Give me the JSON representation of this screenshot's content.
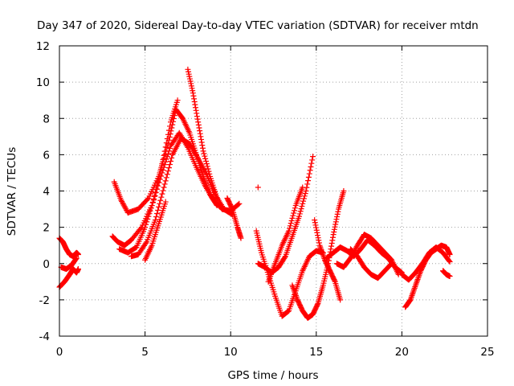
{
  "chart_data": {
    "type": "scatter",
    "title": "Day 347 of 2020, Sidereal Day-to-day VTEC variation (SDTVAR) for receiver mtdn",
    "xlabel": "GPS time / hours",
    "ylabel": "SDTVAR / TECUs",
    "xlim": [
      0,
      25
    ],
    "ylim": [
      -4,
      12
    ],
    "x_ticks": [
      0,
      5,
      10,
      15,
      20,
      25
    ],
    "y_ticks": [
      -4,
      -2,
      0,
      2,
      4,
      6,
      8,
      10,
      12
    ],
    "grid": true,
    "marker": "+",
    "marker_color": "#ff0000",
    "series_segments": [
      {
        "name": "arc-1a",
        "x": [
          0.0,
          0.2,
          0.4,
          0.6,
          0.8,
          1.0,
          1.1
        ],
        "y": [
          1.4,
          1.2,
          0.8,
          0.5,
          0.4,
          0.6,
          0.5
        ]
      },
      {
        "name": "arc-1b",
        "x": [
          0.0,
          0.3,
          0.6,
          0.8,
          1.0,
          1.1
        ],
        "y": [
          -1.3,
          -1.0,
          -0.6,
          -0.3,
          -0.5,
          -0.3
        ]
      },
      {
        "name": "arc-1c",
        "x": [
          0.1,
          0.4,
          0.7,
          1.0
        ],
        "y": [
          -0.2,
          -0.3,
          -0.1,
          0.3
        ]
      },
      {
        "name": "arc-2",
        "x": [
          3.1,
          3.4,
          3.8,
          4.2,
          4.8,
          5.4,
          6.0,
          6.5,
          7.0,
          7.5,
          8.0,
          8.5,
          9.0,
          9.5,
          10.0,
          10.5
        ],
        "y": [
          1.5,
          1.2,
          1.0,
          1.3,
          2.0,
          3.2,
          5.0,
          6.5,
          7.2,
          6.4,
          5.3,
          4.3,
          3.5,
          3.0,
          2.9,
          3.3
        ]
      },
      {
        "name": "arc-3",
        "x": [
          3.2,
          3.6,
          4.0,
          4.6,
          5.2,
          5.8,
          6.4,
          6.8,
          7.2,
          7.6,
          8.0,
          8.4,
          8.8,
          9.2
        ],
        "y": [
          4.5,
          3.5,
          2.8,
          3.0,
          3.6,
          4.8,
          6.8,
          8.5,
          8.0,
          7.2,
          6.0,
          4.8,
          3.8,
          3.2
        ]
      },
      {
        "name": "arc-4",
        "x": [
          3.5,
          4.0,
          4.5,
          5.0,
          5.5,
          6.0,
          6.5,
          6.9
        ],
        "y": [
          0.8,
          0.6,
          0.9,
          2.0,
          3.5,
          5.5,
          7.8,
          9.0
        ]
      },
      {
        "name": "arc-5",
        "x": [
          4.2,
          4.6,
          5.1,
          5.6,
          6.1,
          6.6,
          7.1,
          7.6,
          8.1,
          8.6,
          9.1,
          9.6,
          10.1
        ],
        "y": [
          0.4,
          0.5,
          1.2,
          2.4,
          4.2,
          6.0,
          6.9,
          6.6,
          5.8,
          4.9,
          3.8,
          3.0,
          2.7
        ]
      },
      {
        "name": "arc-6",
        "x": [
          5.0,
          5.4,
          5.8,
          6.2
        ],
        "y": [
          0.2,
          1.0,
          2.2,
          3.4
        ]
      },
      {
        "name": "arc-7",
        "x": [
          7.5,
          7.8,
          8.1,
          8.4,
          8.8,
          9.2
        ],
        "y": [
          10.7,
          9.4,
          7.8,
          6.2,
          4.8,
          3.6
        ]
      },
      {
        "name": "arc-8",
        "x": [
          9.8,
          10.1,
          10.4,
          10.6
        ],
        "y": [
          3.6,
          3.0,
          2.0,
          1.4
        ]
      },
      {
        "name": "arc-9",
        "x": [
          11.5,
          11.8,
          12.2,
          12.6,
          13.0,
          13.4,
          13.8,
          14.2,
          14.6,
          15.0,
          15.4
        ],
        "y": [
          1.8,
          0.6,
          -0.6,
          -1.8,
          -2.9,
          -2.6,
          -1.5,
          -0.4,
          0.4,
          0.7,
          0.6
        ]
      },
      {
        "name": "arc-10",
        "x": [
          11.6,
          12.0,
          12.4,
          12.8,
          13.2,
          13.6,
          14.0,
          14.4,
          14.8
        ],
        "y": [
          0.0,
          -0.2,
          -0.5,
          -0.2,
          0.4,
          1.5,
          2.6,
          4.0,
          5.9
        ]
      },
      {
        "name": "arc-11",
        "x": [
          12.2,
          12.6,
          13.0,
          13.4,
          13.8,
          14.2
        ],
        "y": [
          -1.0,
          0.0,
          1.0,
          1.8,
          3.2,
          4.2
        ]
      },
      {
        "name": "arc-12",
        "x": [
          13.6,
          13.9,
          14.2,
          14.5,
          14.8,
          15.1,
          15.4,
          15.7,
          16.0,
          16.3,
          16.6
        ],
        "y": [
          -1.2,
          -2.0,
          -2.6,
          -3.0,
          -2.8,
          -2.2,
          -1.2,
          0.0,
          1.6,
          3.0,
          4.0
        ]
      },
      {
        "name": "arc-13",
        "x": [
          14.9,
          15.2,
          15.5,
          15.8,
          16.1,
          16.4
        ],
        "y": [
          2.4,
          1.0,
          0.2,
          -0.4,
          -1.0,
          -2.0
        ]
      },
      {
        "name": "arc-14",
        "x": [
          11.6
        ],
        "y": [
          4.2
        ]
      },
      {
        "name": "arc-15",
        "x": [
          15.6,
          16.0,
          16.4,
          16.8,
          17.2,
          17.6,
          18.0,
          18.4,
          18.8,
          19.2,
          19.6,
          20.0
        ],
        "y": [
          0.3,
          0.6,
          0.9,
          0.7,
          0.4,
          0.8,
          1.3,
          1.0,
          0.6,
          0.3,
          -0.2,
          -0.5
        ]
      },
      {
        "name": "arc-16",
        "x": [
          16.2,
          16.6,
          17.0,
          17.4,
          17.8,
          18.2,
          18.6,
          19.0,
          19.4,
          19.8
        ],
        "y": [
          0.0,
          -0.2,
          0.3,
          1.0,
          1.6,
          1.4,
          1.0,
          0.6,
          0.2,
          -0.6
        ]
      },
      {
        "name": "arc-17",
        "x": [
          17.0,
          17.4,
          17.8,
          18.2,
          18.6,
          19.0,
          19.4
        ],
        "y": [
          0.8,
          0.4,
          -0.2,
          -0.6,
          -0.8,
          -0.4,
          0.0
        ]
      },
      {
        "name": "arc-18",
        "x": [
          20.2,
          20.5,
          20.8,
          21.1,
          21.4,
          21.7,
          22.0,
          22.3,
          22.6,
          22.8
        ],
        "y": [
          -2.4,
          -2.0,
          -1.2,
          -0.4,
          0.2,
          0.6,
          0.8,
          1.0,
          0.9,
          0.5
        ]
      },
      {
        "name": "arc-19",
        "x": [
          20.0,
          20.4,
          20.8,
          21.2,
          21.6,
          22.0,
          22.4,
          22.8
        ],
        "y": [
          -0.6,
          -0.9,
          -0.5,
          0.0,
          0.6,
          0.9,
          0.6,
          0.1
        ]
      },
      {
        "name": "arc-20",
        "x": [
          22.4,
          22.6,
          22.8
        ],
        "y": [
          -0.4,
          -0.6,
          -0.7
        ]
      }
    ]
  }
}
